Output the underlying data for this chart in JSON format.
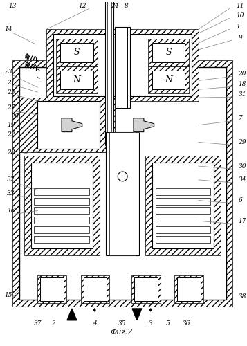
{
  "title": "Фиг.2",
  "bg_color": "#ffffff",
  "hatch_color": "#888888",
  "line_color": "#000000",
  "labels_left": [
    "13",
    "14",
    "23",
    "21",
    "25",
    "27",
    "26",
    "19",
    "22",
    "28",
    "32",
    "33",
    "16",
    "15"
  ],
  "labels_right": [
    "11",
    "10",
    "1",
    "9",
    "20",
    "18",
    "31",
    "7",
    "29",
    "30",
    "34",
    "6",
    "17",
    "38"
  ],
  "labels_top": [
    "12",
    "24",
    "8"
  ],
  "labels_bottom": [
    "37",
    "2",
    "4",
    "35",
    "3",
    "5",
    "36"
  ],
  "magnet_labels": [
    "N",
    "S",
    "N",
    "S"
  ],
  "fig_width": 3.57,
  "fig_height": 5.0
}
